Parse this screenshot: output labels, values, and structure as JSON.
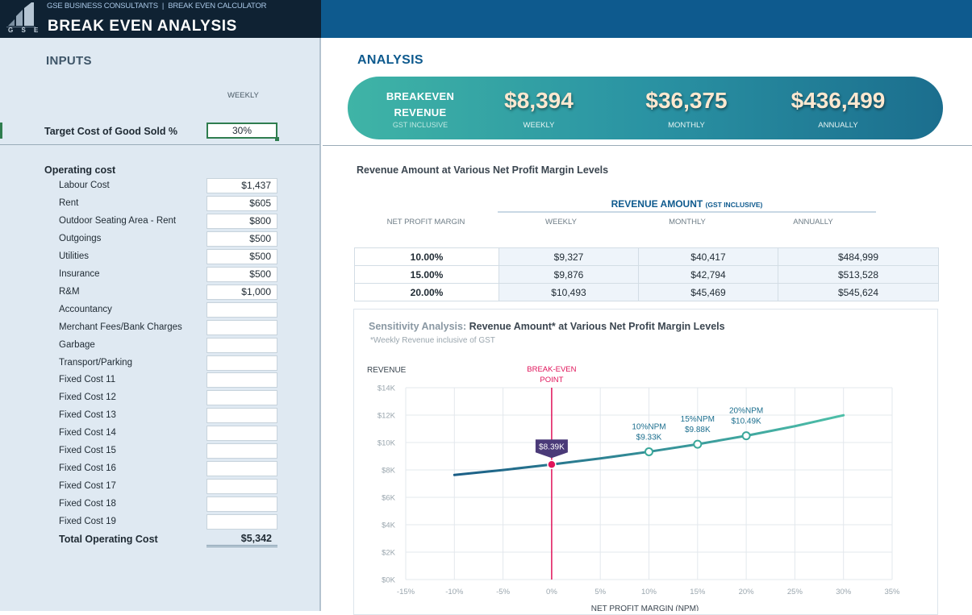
{
  "header": {
    "logo_text": "G S E",
    "company": "GSE BUSINESS CONSULTANTS",
    "separator": "|",
    "calculator": "BREAK EVEN CALCULATOR",
    "title": "BREAK EVEN ANALYSIS"
  },
  "inputs": {
    "heading": "INPUTS",
    "weekly_header": "WEEKLY",
    "target_cogs_label": "Target Cost of Good Sold %",
    "target_cogs_value": "30%",
    "operating_cost_heading": "Operating cost",
    "costs": [
      {
        "label": "Labour Cost",
        "value": "$1,437"
      },
      {
        "label": "Rent",
        "value": "$605"
      },
      {
        "label": "Outdoor Seating Area - Rent",
        "value": "$800"
      },
      {
        "label": "Outgoings",
        "value": "$500"
      },
      {
        "label": "Utilities",
        "value": "$500"
      },
      {
        "label": "Insurance",
        "value": "$500"
      },
      {
        "label": "R&M",
        "value": "$1,000"
      },
      {
        "label": "Accountancy",
        "value": ""
      },
      {
        "label": "Merchant Fees/Bank Charges",
        "value": ""
      },
      {
        "label": "Garbage",
        "value": ""
      },
      {
        "label": "Transport/Parking",
        "value": ""
      },
      {
        "label": "Fixed Cost 11",
        "value": ""
      },
      {
        "label": "Fixed Cost 12",
        "value": ""
      },
      {
        "label": "Fixed Cost 13",
        "value": ""
      },
      {
        "label": "Fixed Cost 14",
        "value": ""
      },
      {
        "label": "Fixed Cost 15",
        "value": ""
      },
      {
        "label": "Fixed Cost 16",
        "value": ""
      },
      {
        "label": "Fixed Cost 17",
        "value": ""
      },
      {
        "label": "Fixed Cost 18",
        "value": ""
      },
      {
        "label": "Fixed Cost 19",
        "value": ""
      }
    ],
    "total_label": "Total Operating Cost",
    "total_value": "$5,342"
  },
  "analysis": {
    "heading": "ANALYSIS",
    "breakeven": {
      "title_line1": "BREAKEVEN",
      "title_line2": "REVENUE",
      "subtitle": "GST INCLUSIVE",
      "weekly_value": "$8,394",
      "weekly_label": "WEEKLY",
      "monthly_value": "$36,375",
      "monthly_label": "MONTHLY",
      "annually_value": "$436,499",
      "annually_label": "ANNUALLY"
    },
    "revenue_table": {
      "title": "Revenue Amount at Various Net Profit Margin Levels",
      "group_header": "REVENUE AMOUNT",
      "group_header_small": "(GST INCLUSIVE)",
      "npm_header": "NET PROFIT MARGIN",
      "col_weekly": "WEEKLY",
      "col_monthly": "MONTHLY",
      "col_annually": "ANNUALLY",
      "rows": [
        {
          "npm": "10.00%",
          "weekly": "$9,327",
          "monthly": "$40,417",
          "annually": "$484,999"
        },
        {
          "npm": "15.00%",
          "weekly": "$9,876",
          "monthly": "$42,794",
          "annually": "$513,528"
        },
        {
          "npm": "20.00%",
          "weekly": "$10,493",
          "monthly": "$45,469",
          "annually": "$545,624"
        }
      ]
    }
  },
  "chart_data": {
    "type": "line",
    "title_prefix": "Sensitivity Analysis:",
    "title": "Revenue Amount* at Various Net Profit Margin Levels",
    "subtitle": "*Weekly Revenue inclusive of GST",
    "ylabel": "REVENUE",
    "xlabel": "NET PROFIT MARGIN (NPM)",
    "xlim": [
      -15,
      35
    ],
    "ylim": [
      0,
      14000
    ],
    "x_ticks": [
      -15,
      -10,
      -5,
      0,
      5,
      10,
      15,
      20,
      25,
      30,
      35
    ],
    "x_tick_labels": [
      "-15%",
      "-10%",
      "-5%",
      "0%",
      "5%",
      "10%",
      "15%",
      "20%",
      "25%",
      "30%",
      "35%"
    ],
    "y_ticks": [
      0,
      2000,
      4000,
      6000,
      8000,
      10000,
      12000,
      14000
    ],
    "y_tick_labels": [
      "$0K",
      "$2K",
      "$4K",
      "$6K",
      "$8K",
      "$10K",
      "$12K",
      "$14K"
    ],
    "grid": true,
    "series": [
      {
        "x": [
          -10,
          -5,
          0,
          5,
          10,
          15,
          20,
          25,
          30
        ],
        "y": [
          7631,
          7994,
          8394,
          8836,
          9327,
          9876,
          10493,
          11192,
          11991
        ]
      }
    ],
    "breakeven": {
      "x": 0,
      "y": 8394,
      "label_line1": "BREAK-EVEN",
      "label_line2": "POINT",
      "value_label": "$8.39K"
    },
    "markers": [
      {
        "x": 10,
        "y": 9327,
        "line1": "10%NPM",
        "line2": "$9.33K"
      },
      {
        "x": 15,
        "y": 9876,
        "line1": "15%NPM",
        "line2": "$9.88K"
      },
      {
        "x": 20,
        "y": 10493,
        "line1": "20%NPM",
        "line2": "$10.49K"
      }
    ],
    "colors": {
      "line_start": "#1b5e86",
      "line_end": "#4dbfa8",
      "breakeven": "#e0145a",
      "grid": "#e3e8ed"
    }
  }
}
